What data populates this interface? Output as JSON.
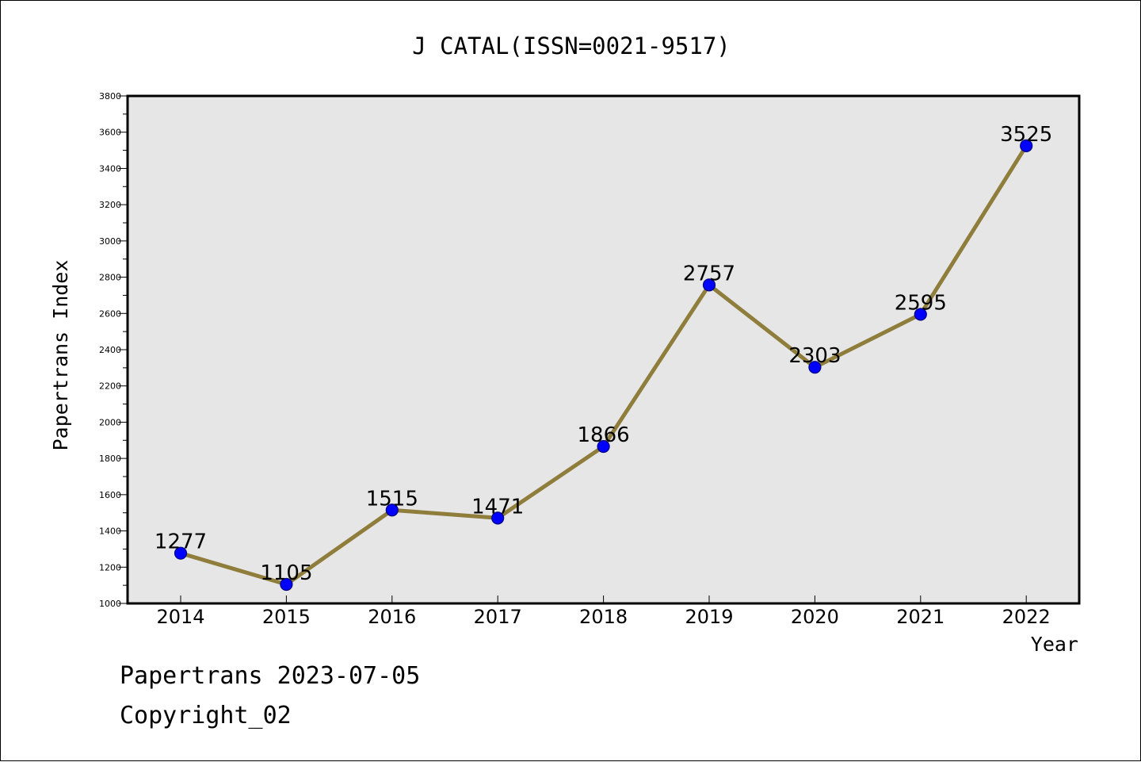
{
  "chart_data": {
    "type": "line",
    "title": "J CATAL(ISSN=0021-9517)",
    "xlabel": "Year",
    "ylabel": "Papertrans Index",
    "categories": [
      "2014",
      "2015",
      "2016",
      "2017",
      "2018",
      "2019",
      "2020",
      "2021",
      "2022"
    ],
    "values": [
      1277,
      1105,
      1515,
      1471,
      1866,
      2757,
      2303,
      2595,
      3525
    ],
    "ylim": [
      1000,
      3800
    ],
    "yticks": [
      1000,
      1200,
      1400,
      1600,
      1800,
      2000,
      2200,
      2400,
      2600,
      2800,
      3000,
      3200,
      3400,
      3600,
      3800
    ],
    "grid": false,
    "legend": "none",
    "colors": {
      "line": "#8f7d3b",
      "marker_fill": "#0000ff",
      "marker_edge": "#000080",
      "plot_background": "#e6e6e6"
    }
  },
  "footer": {
    "line1": "Papertrans 2023-07-05",
    "line2": "Copyright_02"
  }
}
